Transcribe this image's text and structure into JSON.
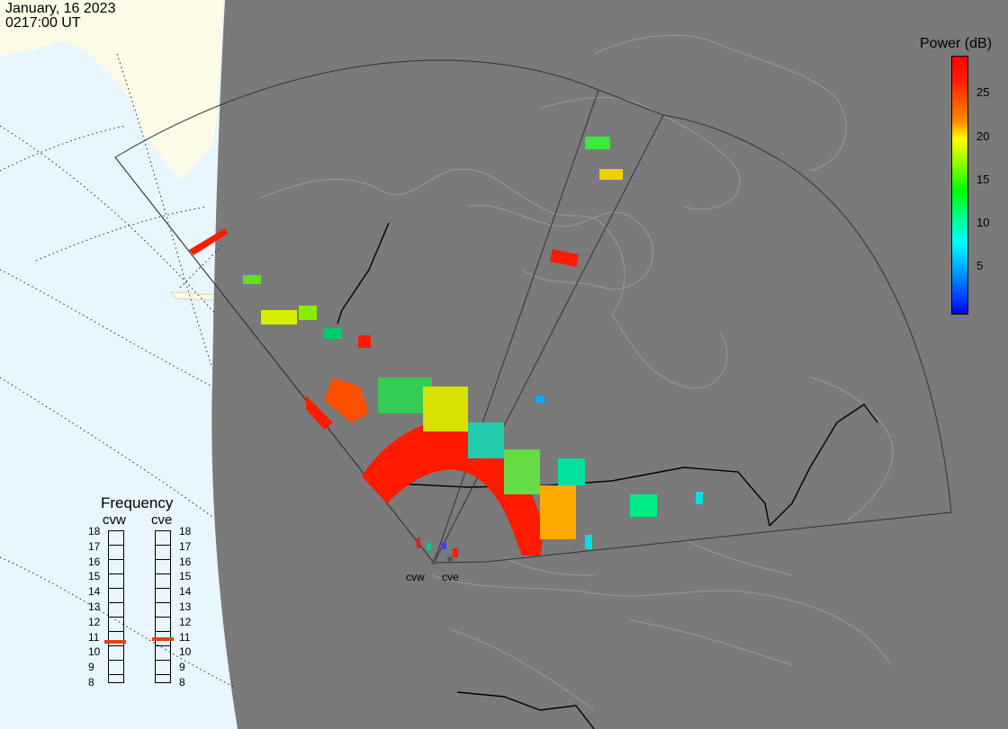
{
  "header": {
    "date": "January, 16 2023",
    "time": "0217:00 UT"
  },
  "colorbar": {
    "title": "Power (dB)",
    "ticks": [
      "25",
      "20",
      "15",
      "10",
      "5"
    ],
    "colors": {
      "max": "#ff0000",
      "mid": "#ffff00",
      "low": "#00ff00",
      "min": "#0000ff"
    }
  },
  "frequency": {
    "title": "Frequency",
    "radars": [
      "cvw",
      "cve"
    ],
    "scale": [
      "18",
      "17",
      "16",
      "15",
      "14",
      "13",
      "12",
      "11",
      "10",
      "9",
      "8"
    ],
    "selected": {
      "cvw": 10.6,
      "cve": 10.8
    },
    "marker_color": "#e34212"
  },
  "sites": [
    "cvw",
    "cve"
  ]
}
